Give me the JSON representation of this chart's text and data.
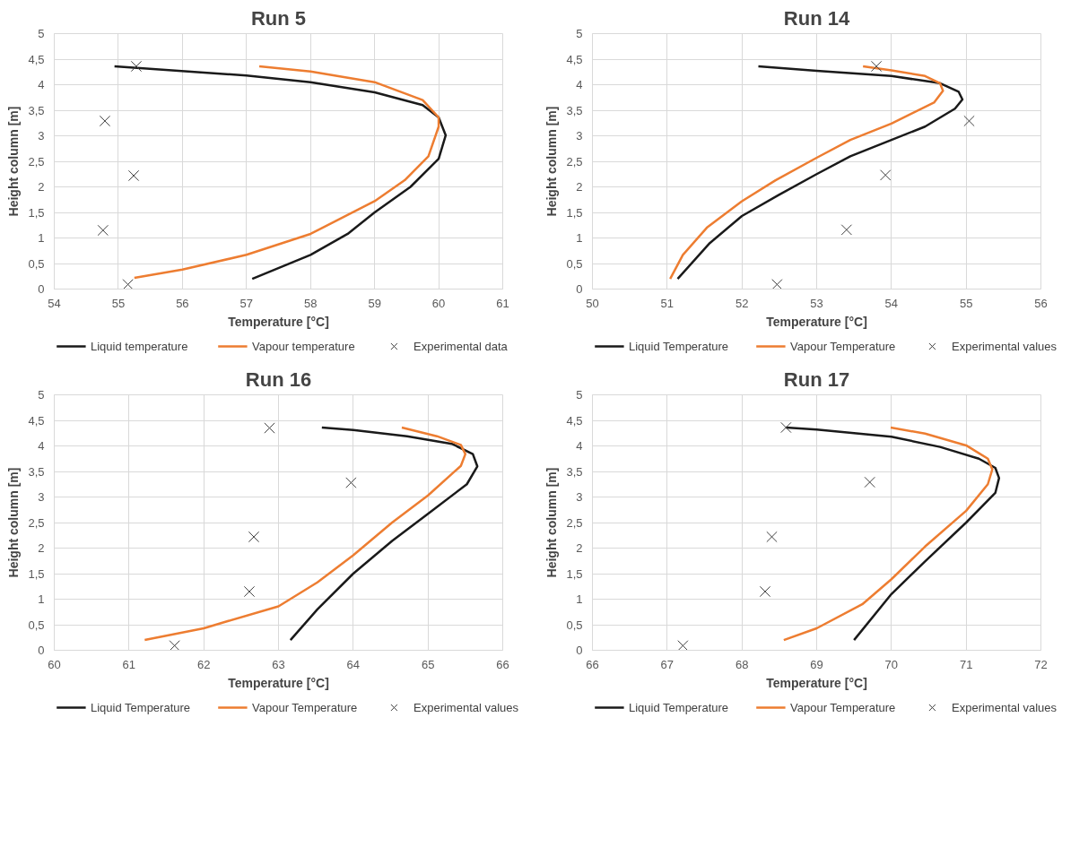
{
  "chart_data": [
    {
      "type": "line",
      "title": "Run 5",
      "xlabel": "Temperature [°C]",
      "ylabel": "Height column [m]",
      "xlim": [
        54,
        61
      ],
      "ylim": [
        0,
        5
      ],
      "xticks": [
        54,
        55,
        56,
        57,
        58,
        59,
        60,
        61
      ],
      "yticks": [
        0,
        {
          "value": 0.5,
          "label": "0,5"
        },
        1,
        {
          "value": 1.5,
          "label": "1,5"
        },
        2,
        {
          "value": 2.5,
          "label": "2,5"
        },
        3,
        {
          "value": 3.5,
          "label": "3,5"
        },
        4,
        {
          "value": 4.5,
          "label": "4,5"
        },
        5
      ],
      "grid": true,
      "legend": "bottom",
      "line_style": "solid",
      "series": [
        {
          "name": "Liquid temperature",
          "type": "line",
          "color": "#1a1a1a",
          "x": [
            54.94,
            57.0,
            58.0,
            59.0,
            59.75,
            60.0,
            60.11,
            60.0,
            59.56,
            59.0,
            58.58,
            58.0,
            57.09
          ],
          "values": [
            4.36,
            4.18,
            4.05,
            3.85,
            3.6,
            3.36,
            3.01,
            2.55,
            2.0,
            1.5,
            1.08,
            0.67,
            0.2
          ]
        },
        {
          "name": "Vapour temperature",
          "type": "line",
          "color": "#ed7d31",
          "x": [
            57.2,
            58.0,
            59.0,
            59.75,
            60.0,
            60.0,
            59.84,
            59.47,
            59.0,
            58.0,
            57.0,
            56.0,
            55.25
          ],
          "values": [
            4.36,
            4.26,
            4.05,
            3.7,
            3.36,
            3.18,
            2.6,
            2.13,
            1.72,
            1.08,
            0.67,
            0.38,
            0.22
          ]
        },
        {
          "name": "Experimental data",
          "type": "scatter",
          "marker": "cross",
          "color": "#404040",
          "x": [
            55.28,
            54.79,
            55.24,
            54.76,
            55.15
          ],
          "values": [
            4.36,
            3.29,
            2.22,
            1.15,
            0.09
          ]
        }
      ]
    },
    {
      "type": "line",
      "title": "Run 14",
      "xlabel": "Temperature [°C]",
      "ylabel": "Height column [m]",
      "xlim": [
        50,
        56
      ],
      "ylim": [
        0,
        5
      ],
      "xticks": [
        50,
        51,
        52,
        53,
        54,
        55,
        56
      ],
      "yticks": [
        0,
        {
          "value": 0.5,
          "label": "0,5"
        },
        1,
        {
          "value": 1.5,
          "label": "1,5"
        },
        2,
        {
          "value": 2.5,
          "label": "2,5"
        },
        3,
        {
          "value": 3.5,
          "label": "3,5"
        },
        4,
        {
          "value": 4.5,
          "label": "4,5"
        },
        5
      ],
      "grid": true,
      "legend": "bottom",
      "line_style": "solid",
      "series": [
        {
          "name": "Liquid Temperature",
          "type": "line",
          "color": "#1a1a1a",
          "x": [
            52.22,
            53.0,
            54.0,
            54.65,
            54.9,
            54.95,
            54.85,
            54.45,
            54.0,
            53.45,
            53.0,
            52.49,
            52.0,
            51.57,
            51.14
          ],
          "values": [
            4.36,
            4.27,
            4.17,
            4.03,
            3.86,
            3.71,
            3.53,
            3.18,
            2.92,
            2.6,
            2.25,
            1.84,
            1.43,
            0.9,
            0.2
          ]
        },
        {
          "name": "Vapour Temperature",
          "type": "line",
          "color": "#ed7d31",
          "x": [
            53.62,
            54.0,
            54.45,
            54.65,
            54.69,
            54.57,
            54.0,
            53.45,
            53.0,
            52.45,
            52.0,
            51.53,
            51.21,
            51.04
          ],
          "values": [
            4.36,
            4.28,
            4.17,
            4.03,
            3.88,
            3.65,
            3.24,
            2.92,
            2.57,
            2.13,
            1.72,
            1.2,
            0.67,
            0.2
          ]
        },
        {
          "name": "Experimental values",
          "type": "scatter",
          "marker": "cross",
          "color": "#404040",
          "x": [
            53.8,
            55.04,
            53.92,
            53.4,
            52.47
          ],
          "values": [
            4.36,
            3.29,
            2.23,
            1.16,
            0.09
          ]
        }
      ]
    },
    {
      "type": "line",
      "title": "Run 16",
      "xlabel": "Temperature [°C]",
      "ylabel": "Height column [m]",
      "xlim": [
        60,
        66
      ],
      "ylim": [
        0,
        5
      ],
      "xticks": [
        60,
        61,
        62,
        63,
        64,
        65,
        66
      ],
      "yticks": [
        0,
        {
          "value": 0.5,
          "label": "0,5"
        },
        1,
        {
          "value": 1.5,
          "label": "1,5"
        },
        2,
        {
          "value": 2.5,
          "label": "2,5"
        },
        3,
        {
          "value": 3.5,
          "label": "3,5"
        },
        4,
        {
          "value": 4.5,
          "label": "4,5"
        },
        5
      ],
      "grid": true,
      "legend": "bottom",
      "line_style": "solid",
      "series": [
        {
          "name": "Liquid Temperature",
          "type": "line",
          "color": "#1a1a1a",
          "x": [
            63.58,
            64.0,
            64.72,
            65.32,
            65.6,
            65.66,
            65.52,
            65.0,
            64.52,
            64.0,
            63.52,
            63.16
          ],
          "values": [
            4.36,
            4.31,
            4.19,
            4.04,
            3.84,
            3.6,
            3.25,
            2.67,
            2.14,
            1.5,
            0.8,
            0.2
          ]
        },
        {
          "name": "Vapour Temperature",
          "type": "line",
          "color": "#ed7d31",
          "x": [
            64.65,
            65.12,
            65.44,
            65.5,
            65.44,
            65.0,
            64.52,
            64.0,
            63.52,
            63.0,
            62.32,
            62.0,
            61.21
          ],
          "values": [
            4.36,
            4.19,
            4.02,
            3.84,
            3.61,
            3.03,
            2.5,
            1.86,
            1.33,
            0.86,
            0.57,
            0.43,
            0.2
          ]
        },
        {
          "name": "Experimental values",
          "type": "scatter",
          "marker": "cross",
          "color": "#404040",
          "x": [
            62.88,
            63.97,
            62.67,
            62.61,
            61.61
          ],
          "values": [
            4.35,
            3.28,
            2.22,
            1.15,
            0.09
          ]
        }
      ]
    },
    {
      "type": "line",
      "title": "Run 17",
      "xlabel": "Temperature [°C]",
      "ylabel": "Height column [m]",
      "xlim": [
        66,
        72
      ],
      "ylim": [
        0,
        5
      ],
      "xticks": [
        66,
        67,
        68,
        69,
        70,
        71,
        72
      ],
      "yticks": [
        0,
        {
          "value": 0.5,
          "label": "0,5"
        },
        1,
        {
          "value": 1.5,
          "label": "1,5"
        },
        2,
        {
          "value": 2.5,
          "label": "2,5"
        },
        3,
        {
          "value": 3.5,
          "label": "3,5"
        },
        4,
        {
          "value": 4.5,
          "label": "4,5"
        },
        5
      ],
      "grid": true,
      "legend": "bottom",
      "line_style": "solid",
      "series": [
        {
          "name": "Liquid Temperature",
          "type": "line",
          "color": "#1a1a1a",
          "x": [
            68.59,
            69.0,
            70.0,
            70.65,
            71.17,
            71.39,
            71.44,
            71.39,
            71.0,
            70.45,
            70.0,
            69.5
          ],
          "values": [
            4.36,
            4.32,
            4.18,
            3.98,
            3.75,
            3.57,
            3.37,
            3.08,
            2.5,
            1.74,
            1.1,
            0.2
          ]
        },
        {
          "name": "Vapour Temperature",
          "type": "line",
          "color": "#ed7d31",
          "x": [
            69.99,
            70.45,
            71.0,
            71.29,
            71.35,
            71.29,
            71.0,
            70.45,
            70.0,
            69.61,
            69.0,
            68.56
          ],
          "values": [
            4.36,
            4.24,
            4.01,
            3.75,
            3.54,
            3.25,
            2.73,
            2.03,
            1.39,
            0.9,
            0.43,
            0.2
          ]
        },
        {
          "name": "Experimental values",
          "type": "scatter",
          "marker": "cross",
          "color": "#404040",
          "x": [
            68.59,
            69.71,
            68.4,
            68.31,
            67.21
          ],
          "values": [
            4.36,
            3.29,
            2.22,
            1.15,
            0.09
          ]
        }
      ]
    }
  ]
}
